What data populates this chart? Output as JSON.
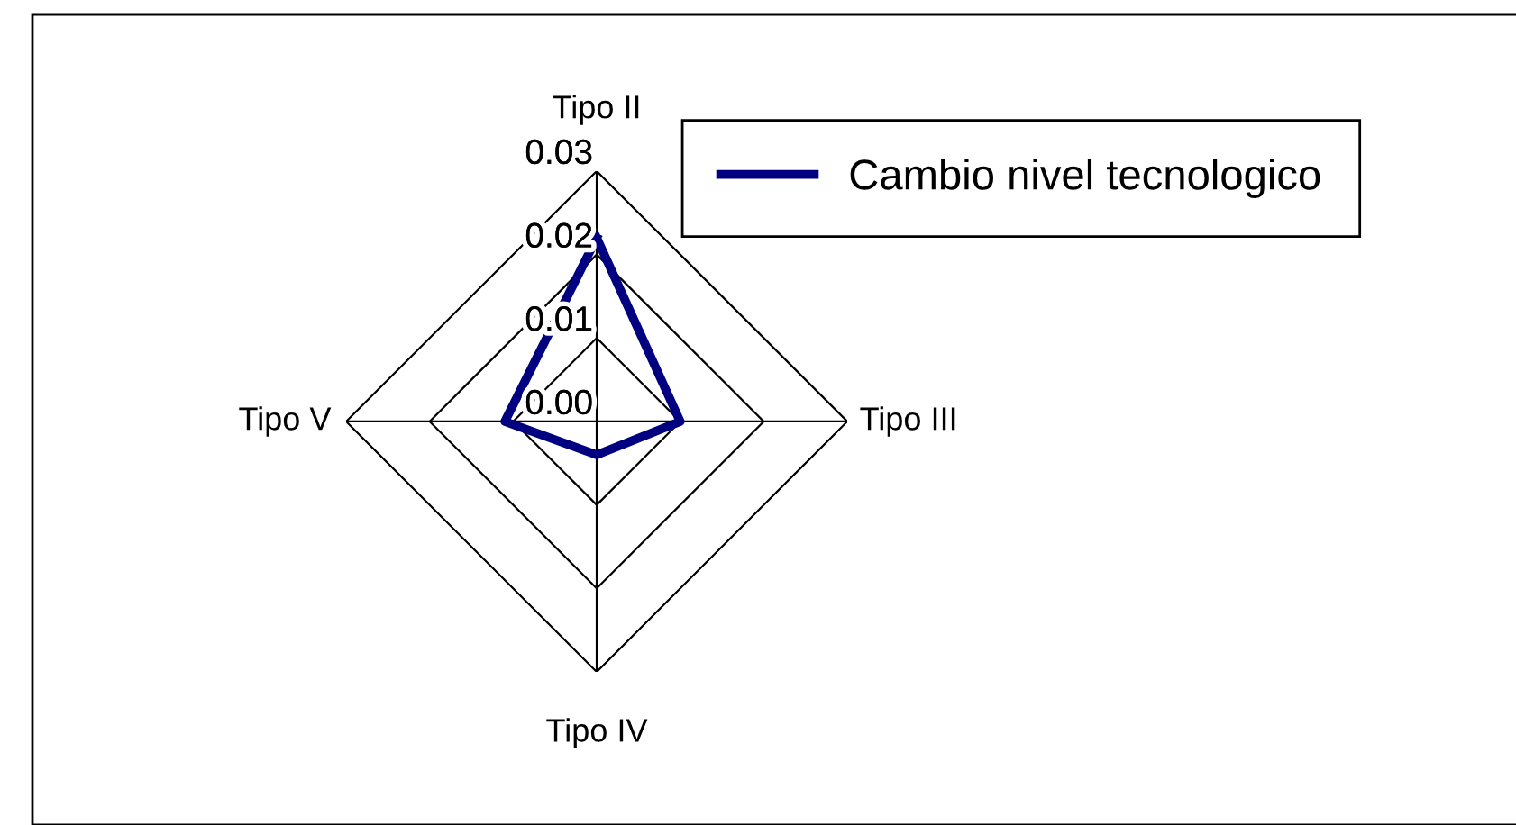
{
  "chart_data": {
    "type": "radar",
    "categories": [
      "Tipo II",
      "Tipo III",
      "Tipo IV",
      "Tipo V"
    ],
    "series": [
      {
        "name": "Cambio nivel tecnologico",
        "color": "#000080",
        "values": [
          0.022,
          0.01,
          0.004,
          0.011
        ]
      }
    ],
    "ylim": [
      0,
      0.03
    ],
    "yticks": [
      {
        "value": 0,
        "label": "0.00"
      },
      {
        "value": 0.01,
        "label": "0.01"
      },
      {
        "value": 0.02,
        "label": "0.02"
      },
      {
        "value": 0.03,
        "label": "0.03"
      }
    ],
    "grid": true,
    "legend": "top right",
    "marker": "none",
    "line_style": "solid"
  }
}
